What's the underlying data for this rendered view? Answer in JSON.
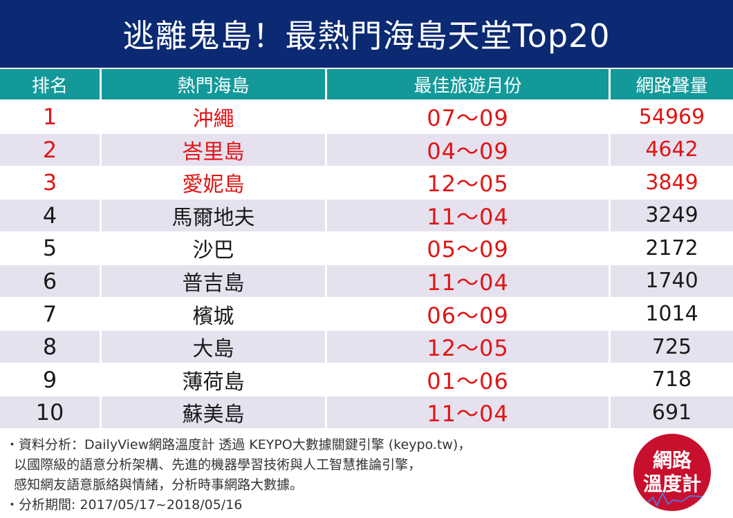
{
  "title": "逃離鬼島！最熱門海島天堂Top20",
  "table": {
    "headers": [
      "排名",
      "熱門海島",
      "最佳旅遊月份",
      "網路聲量"
    ],
    "rows": [
      {
        "rank": "1",
        "island": "沖繩",
        "months": "07～09",
        "buzz": "54969"
      },
      {
        "rank": "2",
        "island": "峇里島",
        "months": "04～09",
        "buzz": "4642"
      },
      {
        "rank": "3",
        "island": "愛妮島",
        "months": "12～05",
        "buzz": "3849"
      },
      {
        "rank": "4",
        "island": "馬爾地夫",
        "months": "11～04",
        "buzz": "3249"
      },
      {
        "rank": "5",
        "island": "沙巴",
        "months": "05～09",
        "buzz": "2172"
      },
      {
        "rank": "6",
        "island": "普吉島",
        "months": "11～04",
        "buzz": "1740"
      },
      {
        "rank": "7",
        "island": "檳城",
        "months": "06～09",
        "buzz": "1014"
      },
      {
        "rank": "8",
        "island": "大島",
        "months": "12～05",
        "buzz": "725"
      },
      {
        "rank": "9",
        "island": "薄荷島",
        "months": "01～06",
        "buzz": "718"
      },
      {
        "rank": "10",
        "island": "蘇美島",
        "months": "11～04",
        "buzz": "691"
      }
    ]
  },
  "notes": [
    "・資料分析：DailyView網路溫度計 透過 KEYPO大數據關鍵引擎 (keypo.tw)，",
    "  以國際級的語意分析架構、先進的機器學習技術與人工智慧推論引擎，",
    "  感知網友語意脈絡與情緒，分析時事網路大數據。",
    "・分析期間: 2017/05/17~2018/05/16"
  ],
  "badge": {
    "line1": "網路",
    "line2": "溫度計"
  },
  "colors": {
    "title_bg": "#0b2a73",
    "header_bg": "#13999a",
    "stripe": "#e6e1ef",
    "highlight": "#e01414",
    "badge": "#c8102e"
  }
}
